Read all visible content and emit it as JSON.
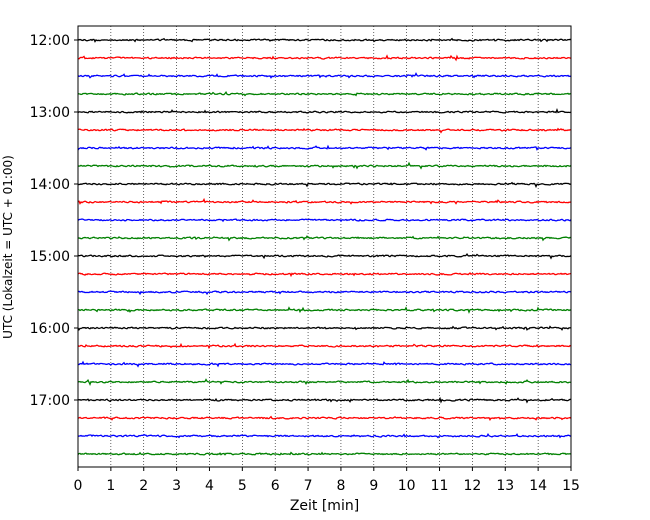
{
  "chart_data": {
    "type": "line",
    "xlabel": "Zeit  [min]",
    "ylabel": "UTC (Lokalzeit = UTC + 01:00)",
    "xlim": [
      0,
      15
    ],
    "xticks": [
      "0",
      "1",
      "2",
      "3",
      "4",
      "5",
      "6",
      "7",
      "8",
      "9",
      "10",
      "11",
      "12",
      "13",
      "14",
      "15"
    ],
    "ytick_labels": [
      "12:00",
      "13:00",
      "14:00",
      "15:00",
      "16:00",
      "17:00"
    ],
    "trace_interval_min": 15,
    "start": "12:00",
    "trace_count": 24,
    "trace_colors": [
      "#000000",
      "#ff0000",
      "#0000ff",
      "#008000"
    ],
    "grid_x": true,
    "grid_style": "dotted vertical"
  }
}
